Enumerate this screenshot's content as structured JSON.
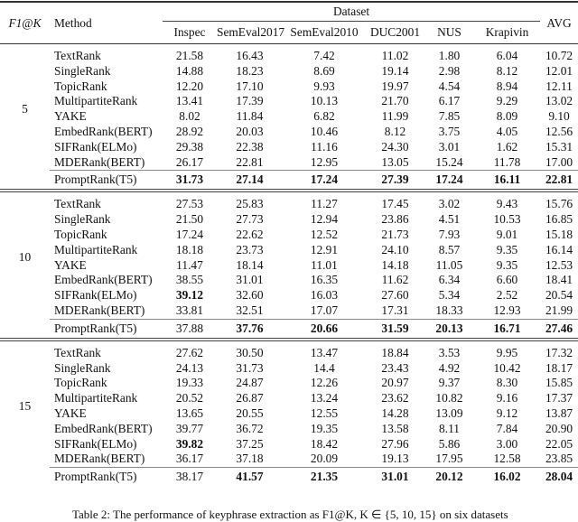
{
  "header": {
    "k_label": "F1@K",
    "method_label": "Method",
    "dataset_label": "Dataset",
    "avg_label": "AVG",
    "datasets": [
      "Inspec",
      "SemEval2017",
      "SemEval2010",
      "DUC2001",
      "NUS",
      "Krapivin"
    ]
  },
  "groups": [
    {
      "k": "5",
      "rows": [
        {
          "method": "TextRank",
          "values": [
            "21.58",
            "16.43",
            "7.42",
            "11.02",
            "1.80",
            "6.04",
            "10.72"
          ],
          "bold": []
        },
        {
          "method": "SingleRank",
          "values": [
            "14.88",
            "18.23",
            "8.69",
            "19.14",
            "2.98",
            "8.12",
            "12.01"
          ],
          "bold": []
        },
        {
          "method": "TopicRank",
          "values": [
            "12.20",
            "17.10",
            "9.93",
            "19.97",
            "4.54",
            "8.94",
            "12.11"
          ],
          "bold": []
        },
        {
          "method": "MultipartiteRank",
          "values": [
            "13.41",
            "17.39",
            "10.13",
            "21.70",
            "6.17",
            "9.29",
            "13.02"
          ],
          "bold": []
        },
        {
          "method": "YAKE",
          "values": [
            "8.02",
            "11.84",
            "6.82",
            "11.99",
            "7.85",
            "8.09",
            "9.10"
          ],
          "bold": []
        },
        {
          "method": "EmbedRank(BERT)",
          "values": [
            "28.92",
            "20.03",
            "10.46",
            "8.12",
            "3.75",
            "4.05",
            "12.56"
          ],
          "bold": []
        },
        {
          "method": "SIFRank(ELMo)",
          "values": [
            "29.38",
            "22.38",
            "11.16",
            "24.30",
            "3.01",
            "1.62",
            "15.31"
          ],
          "bold": []
        },
        {
          "method": "MDERank(BERT)",
          "values": [
            "26.17",
            "22.81",
            "12.95",
            "13.05",
            "15.24",
            "11.78",
            "17.00"
          ],
          "bold": []
        }
      ],
      "proposed": {
        "method": "PromptRank(T5)",
        "values": [
          "31.73",
          "27.14",
          "17.24",
          "27.39",
          "17.24",
          "16.11",
          "22.81"
        ],
        "bold": [
          0,
          1,
          2,
          3,
          4,
          5,
          6
        ]
      }
    },
    {
      "k": "10",
      "rows": [
        {
          "method": "TextRank",
          "values": [
            "27.53",
            "25.83",
            "11.27",
            "17.45",
            "3.02",
            "9.43",
            "15.76"
          ],
          "bold": []
        },
        {
          "method": "SingleRank",
          "values": [
            "21.50",
            "27.73",
            "12.94",
            "23.86",
            "4.51",
            "10.53",
            "16.85"
          ],
          "bold": []
        },
        {
          "method": "TopicRank",
          "values": [
            "17.24",
            "22.62",
            "12.52",
            "21.73",
            "7.93",
            "9.01",
            "15.18"
          ],
          "bold": []
        },
        {
          "method": "MultipartiteRank",
          "values": [
            "18.18",
            "23.73",
            "12.91",
            "24.10",
            "8.57",
            "9.35",
            "16.14"
          ],
          "bold": []
        },
        {
          "method": "YAKE",
          "values": [
            "11.47",
            "18.14",
            "11.01",
            "14.18",
            "11.05",
            "9.35",
            "12.53"
          ],
          "bold": []
        },
        {
          "method": "EmbedRank(BERT)",
          "values": [
            "38.55",
            "31.01",
            "16.35",
            "11.62",
            "6.34",
            "6.60",
            "18.41"
          ],
          "bold": []
        },
        {
          "method": "SIFRank(ELMo)",
          "values": [
            "39.12",
            "32.60",
            "16.03",
            "27.60",
            "5.34",
            "2.52",
            "20.54"
          ],
          "bold": [
            0
          ]
        },
        {
          "method": "MDERank(BERT)",
          "values": [
            "33.81",
            "32.51",
            "17.07",
            "17.31",
            "18.33",
            "12.93",
            "21.99"
          ],
          "bold": []
        }
      ],
      "proposed": {
        "method": "PromptRank(T5)",
        "values": [
          "37.88",
          "37.76",
          "20.66",
          "31.59",
          "20.13",
          "16.71",
          "27.46"
        ],
        "bold": [
          1,
          2,
          3,
          4,
          5,
          6
        ]
      }
    },
    {
      "k": "15",
      "rows": [
        {
          "method": "TextRank",
          "values": [
            "27.62",
            "30.50",
            "13.47",
            "18.84",
            "3.53",
            "9.95",
            "17.32"
          ],
          "bold": []
        },
        {
          "method": "SingleRank",
          "values": [
            "24.13",
            "31.73",
            "14.4",
            "23.43",
            "4.92",
            "10.42",
            "18.17"
          ],
          "bold": []
        },
        {
          "method": "TopicRank",
          "values": [
            "19.33",
            "24.87",
            "12.26",
            "20.97",
            "9.37",
            "8.30",
            "15.85"
          ],
          "bold": []
        },
        {
          "method": "MultipartiteRank",
          "values": [
            "20.52",
            "26.87",
            "13.24",
            "23.62",
            "10.82",
            "9.16",
            "17.37"
          ],
          "bold": []
        },
        {
          "method": "YAKE",
          "values": [
            "13.65",
            "20.55",
            "12.55",
            "14.28",
            "13.09",
            "9.12",
            "13.87"
          ],
          "bold": []
        },
        {
          "method": "EmbedRank(BERT)",
          "values": [
            "39.77",
            "36.72",
            "19.35",
            "13.58",
            "8.11",
            "7.84",
            "20.90"
          ],
          "bold": []
        },
        {
          "method": "SIFRank(ELMo)",
          "values": [
            "39.82",
            "37.25",
            "18.42",
            "27.96",
            "5.86",
            "3.00",
            "22.05"
          ],
          "bold": [
            0
          ]
        },
        {
          "method": "MDERank(BERT)",
          "values": [
            "36.17",
            "37.18",
            "20.09",
            "19.13",
            "17.95",
            "12.58",
            "23.85"
          ],
          "bold": []
        }
      ],
      "proposed": {
        "method": "PromptRank(T5)",
        "values": [
          "38.17",
          "41.57",
          "21.35",
          "31.01",
          "20.12",
          "16.02",
          "28.04"
        ],
        "bold": [
          1,
          2,
          3,
          4,
          5,
          6
        ]
      }
    }
  ],
  "caption": "Table 2: The performance of keyphrase extraction as F1@K, K ∈ {5, 10, 15} on six datasets"
}
